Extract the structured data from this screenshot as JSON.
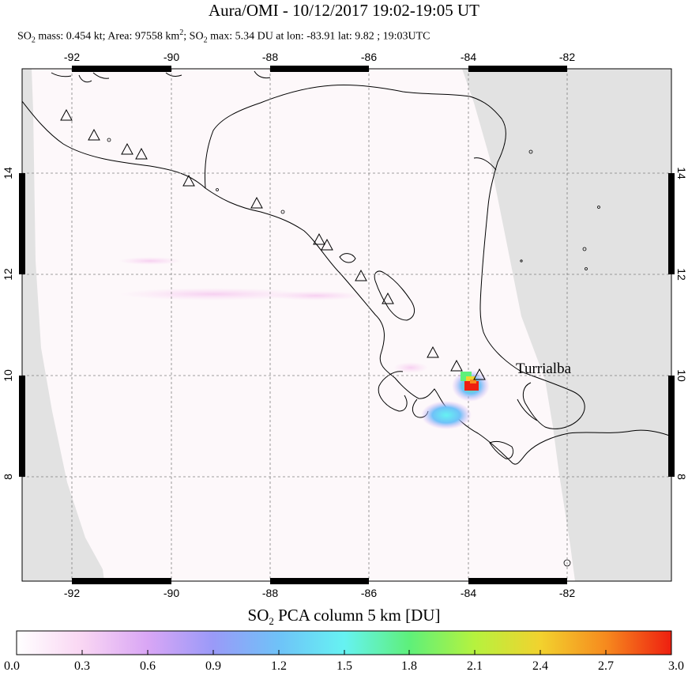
{
  "title": "Aura/OMI - 10/12/2017 19:02-19:05 UT",
  "subtitle": {
    "mass_prefix": "SO",
    "mass_sub": "2",
    "mass_text": " mass: 0.454 kt; Area: 97558 km",
    "area_sup": "2",
    "max_prefix": "; SO",
    "max_sub": "2",
    "max_text": " max: 5.34 DU at lon: -83.91 lat: 9.82 ; 19:03UTC"
  },
  "map": {
    "lon_ticks": [
      "-92",
      "-90",
      "-88",
      "-86",
      "-84",
      "-82"
    ],
    "lat_ticks": [
      "14",
      "12",
      "10",
      "8"
    ],
    "volcano_label": "Turrialba",
    "colors": {
      "land": "#fdf8fa",
      "sea_outside": "#e2e2e2",
      "coast": "#000000",
      "grid": "#808080"
    }
  },
  "colorbar": {
    "title_prefix": "SO",
    "title_sub": "2",
    "title_text": " PCA column 5 km [DU]",
    "labels": [
      "0.0",
      "0.3",
      "0.6",
      "0.9",
      "1.2",
      "1.5",
      "1.8",
      "2.1",
      "2.4",
      "2.7",
      "3.0"
    ],
    "colors": [
      "#ffffff",
      "#f9d6f3",
      "#d9a6f5",
      "#9a9af8",
      "#6fc2f8",
      "#66f2f2",
      "#5ef07a",
      "#b6f23e",
      "#f2d22e",
      "#f68a1e",
      "#ee1f10"
    ]
  }
}
